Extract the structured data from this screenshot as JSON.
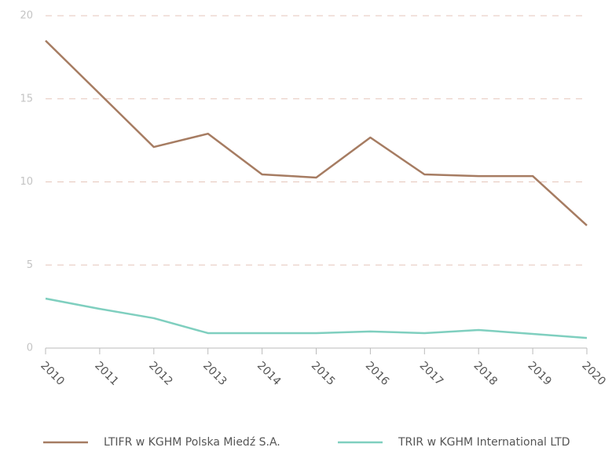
{
  "chart_data": {
    "type": "line",
    "categories": [
      "2010",
      "2011",
      "2012",
      "2013",
      "2014",
      "2015",
      "2016",
      "2017",
      "2018",
      "2019",
      "2020"
    ],
    "series": [
      {
        "name": "LTIFR w KGHM Polska Miedź S.A.",
        "color": "#a67c62",
        "values": [
          18.5,
          15.3,
          12.1,
          12.9,
          10.45,
          10.26,
          12.67,
          10.45,
          10.35,
          10.35,
          7.38
        ]
      },
      {
        "name": "TRIR w KGHM International LTD",
        "color": "#7fcfbf",
        "values": [
          2.98,
          2.36,
          1.8,
          0.9,
          0.9,
          0.9,
          1.0,
          0.9,
          1.09,
          0.85,
          0.61
        ]
      }
    ],
    "ylim": [
      0,
      20
    ],
    "yticks": [
      0,
      5,
      10,
      15,
      20
    ],
    "grid": true,
    "legend": "bottom"
  }
}
